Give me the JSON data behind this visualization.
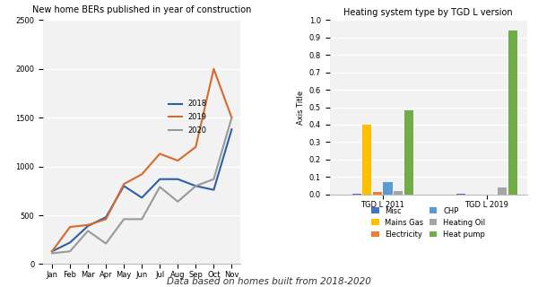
{
  "line_chart": {
    "title": "New home BERs published in year of construction",
    "months": [
      "Jan",
      "Feb",
      "Mar",
      "Apr",
      "May",
      "Jun",
      "Jul",
      "Aug",
      "Sep",
      "Oct",
      "Nov"
    ],
    "series": {
      "2018": [
        130,
        220,
        390,
        480,
        800,
        680,
        870,
        870,
        800,
        760,
        1380
      ],
      "2019": [
        130,
        380,
        400,
        460,
        820,
        920,
        1130,
        1060,
        1200,
        2000,
        1500
      ],
      "2020": [
        110,
        130,
        340,
        210,
        460,
        460,
        790,
        640,
        800,
        870,
        1500
      ]
    },
    "colors": {
      "2018": "#2E5FA3",
      "2019": "#D46B2D",
      "2020": "#999999"
    },
    "ylim": [
      0,
      2500
    ],
    "yticks": [
      0,
      500,
      1000,
      1500,
      2000,
      2500
    ],
    "bg_color": "#F2F2F2"
  },
  "bar_chart": {
    "title": "Heating system type by TGD L version",
    "ylabel": "Axis Title",
    "groups": [
      "TGD L 2011",
      "TGD L 2019"
    ],
    "categories": [
      "Misc",
      "Mains Gas",
      "Electricity",
      "CHP",
      "Heating Oil",
      "Heat pump"
    ],
    "legend_order": [
      [
        "Misc",
        "Mains Gas"
      ],
      [
        "Electricity",
        "CHP"
      ],
      [
        "Heating Oil",
        "Heat pump"
      ]
    ],
    "colors": [
      "#4472C4",
      "#FFC000",
      "#ED7D31",
      "#5B9BD5",
      "#A5A5A5",
      "#70AD47"
    ],
    "values": {
      "TGD L 2011": [
        0.005,
        0.4,
        0.012,
        0.07,
        0.018,
        0.48
      ],
      "TGD L 2019": [
        0.002,
        0.0,
        0.0,
        0.0,
        0.04,
        0.94
      ]
    },
    "ylim": [
      0,
      1.0
    ],
    "yticks": [
      0,
      0.1,
      0.2,
      0.3,
      0.4,
      0.5,
      0.6,
      0.7,
      0.8,
      0.9,
      1
    ],
    "footnote": "Data based on homes built from 2018-2020",
    "bg_color": "#F2F2F2"
  }
}
